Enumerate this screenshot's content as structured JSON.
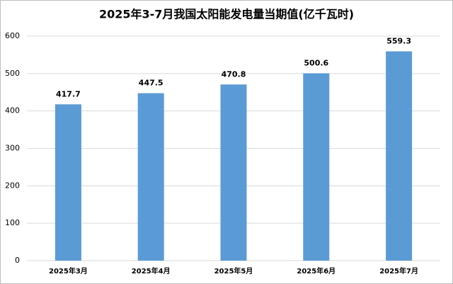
{
  "chart_data": {
    "type": "bar",
    "title": "2025年3-7月我国太阳能发电量当期值(亿千瓦时)",
    "categories": [
      "2025年3月",
      "2025年4月",
      "2025年5月",
      "2025年6月",
      "2025年7月"
    ],
    "values": [
      417.7,
      447.5,
      470.8,
      500.6,
      559.3
    ],
    "color": "#5b9bd5",
    "ylim": [
      0,
      600
    ],
    "yticks": [
      0,
      100,
      200,
      300,
      400,
      500,
      600
    ],
    "grid": true
  }
}
